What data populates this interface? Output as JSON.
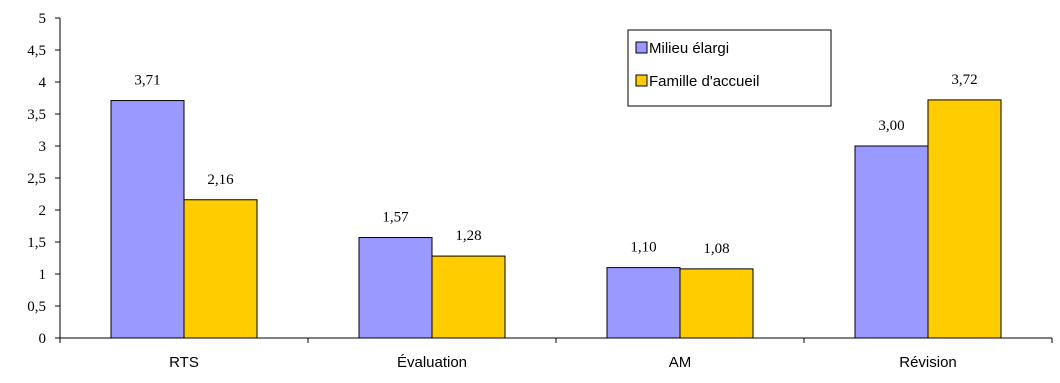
{
  "chart_data": {
    "type": "bar",
    "title": "",
    "xlabel": "",
    "ylabel": "",
    "categories": [
      "RTS",
      "Évaluation",
      "AM",
      "Révision"
    ],
    "series": [
      {
        "name": "Milieu élargi",
        "color": "#9999ff",
        "values": [
          3.71,
          1.57,
          1.1,
          3.0
        ],
        "labels": [
          "3,71",
          "1,57",
          "1,10",
          "3,00"
        ]
      },
      {
        "name": "Famille d'accueil",
        "color": "#ffcc00",
        "values": [
          2.16,
          1.28,
          1.08,
          3.72
        ],
        "labels": [
          "2,16",
          "1,28",
          "1,08",
          "3,72"
        ]
      }
    ],
    "ylim": [
      0,
      5
    ],
    "yticks": [
      0,
      0.5,
      1,
      1.5,
      2,
      2.5,
      3,
      3.5,
      4,
      4.5,
      5
    ],
    "ytick_labels": [
      "0",
      "0,5",
      "1",
      "1,5",
      "2",
      "2,5",
      "3",
      "3,5",
      "4",
      "4,5",
      "5"
    ],
    "grid": false,
    "legend_position": "top-right"
  }
}
